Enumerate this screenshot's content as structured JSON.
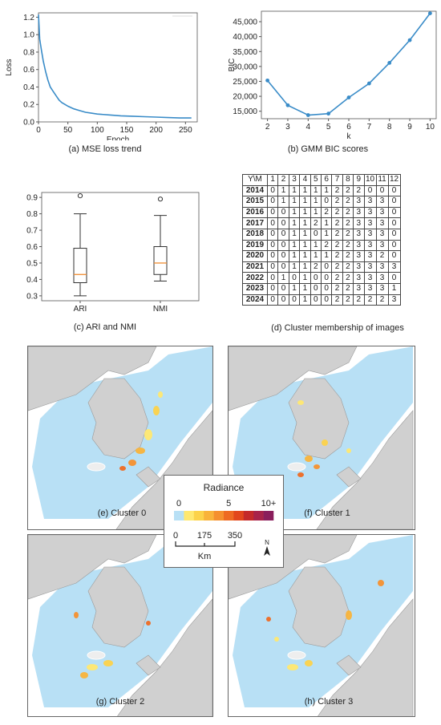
{
  "panel_a": {
    "caption": "(a) MSE loss trend",
    "chart_data": {
      "type": "line",
      "xlabel": "Epoch",
      "ylabel": "Loss",
      "xlim": [
        0,
        270
      ],
      "ylim": [
        0,
        1.25
      ],
      "xticks": [
        "0",
        "50",
        "100",
        "150",
        "200",
        "250"
      ],
      "yticks": [
        "0.0",
        "0.2",
        "0.4",
        "0.6",
        "0.8",
        "1.0",
        "1.2"
      ],
      "x": [
        0,
        2,
        5,
        8,
        12,
        16,
        20,
        25,
        30,
        35,
        40,
        45,
        50,
        60,
        70,
        80,
        90,
        100,
        120,
        140,
        160,
        180,
        200,
        220,
        240,
        260
      ],
      "y": [
        1.23,
        0.95,
        0.82,
        0.7,
        0.58,
        0.48,
        0.4,
        0.35,
        0.3,
        0.25,
        0.22,
        0.2,
        0.18,
        0.15,
        0.13,
        0.11,
        0.1,
        0.09,
        0.08,
        0.07,
        0.065,
        0.06,
        0.055,
        0.05,
        0.045,
        0.045
      ]
    }
  },
  "panel_b": {
    "caption": "(b) GMM BIC scores",
    "chart_data": {
      "type": "line",
      "xlabel": "k",
      "ylabel": "BIC",
      "xlim": [
        1.7,
        10.3
      ],
      "ylim": [
        12500,
        48500
      ],
      "xticks": [
        "2",
        "3",
        "4",
        "5",
        "6",
        "7",
        "8",
        "9",
        "10"
      ],
      "yticks": [
        "15,000",
        "20,000",
        "25,000",
        "30,000",
        "35,000",
        "40,000",
        "45,000"
      ],
      "x": [
        2,
        3,
        4,
        5,
        6,
        7,
        8,
        9,
        10
      ],
      "y": [
        25300,
        17000,
        13700,
        14200,
        19600,
        24300,
        31200,
        38800,
        47800
      ]
    }
  },
  "panel_c": {
    "caption": "(c) ARI and NMI",
    "chart_data": {
      "type": "box",
      "categories": [
        "ARI",
        "NMI"
      ],
      "ylim": [
        0.27,
        0.93
      ],
      "yticks": [
        "0.3",
        "0.4",
        "0.5",
        "0.6",
        "0.7",
        "0.8",
        "0.9"
      ],
      "boxes": [
        {
          "whisker_low": 0.3,
          "q1": 0.38,
          "median": 0.43,
          "q3": 0.59,
          "whisker_high": 0.8,
          "outliers": [
            0.91
          ]
        },
        {
          "whisker_low": 0.39,
          "q1": 0.43,
          "median": 0.5,
          "q3": 0.6,
          "whisker_high": 0.79,
          "outliers": [
            0.89
          ]
        }
      ]
    }
  },
  "panel_d": {
    "caption": "(d) Cluster membership of images",
    "chart_data": {
      "type": "table",
      "corner": "Y\\M",
      "columns": [
        "1",
        "2",
        "3",
        "4",
        "5",
        "6",
        "7",
        "8",
        "9",
        "10",
        "11",
        "12"
      ],
      "rows": [
        {
          "year": "2014",
          "cells": [
            "0",
            "1",
            "1",
            "1",
            "1",
            "1",
            "2",
            "2",
            "2",
            "0",
            "0",
            "0"
          ]
        },
        {
          "year": "2015",
          "cells": [
            "0",
            "1",
            "1",
            "1",
            "1",
            "0",
            "2",
            "2",
            "3",
            "3",
            "3",
            "0"
          ]
        },
        {
          "year": "2016",
          "cells": [
            "0",
            "0",
            "1",
            "1",
            "1",
            "2",
            "2",
            "2",
            "3",
            "3",
            "3",
            "0"
          ]
        },
        {
          "year": "2017",
          "cells": [
            "0",
            "0",
            "1",
            "1",
            "2",
            "1",
            "2",
            "2",
            "3",
            "3",
            "3",
            "0"
          ]
        },
        {
          "year": "2018",
          "cells": [
            "0",
            "0",
            "1",
            "1",
            "0",
            "1",
            "2",
            "2",
            "3",
            "3",
            "3",
            "0"
          ]
        },
        {
          "year": "2019",
          "cells": [
            "0",
            "0",
            "1",
            "1",
            "1",
            "2",
            "2",
            "2",
            "3",
            "3",
            "3",
            "0"
          ]
        },
        {
          "year": "2020",
          "cells": [
            "0",
            "0",
            "1",
            "1",
            "1",
            "1",
            "2",
            "2",
            "3",
            "3",
            "2",
            "0"
          ]
        },
        {
          "year": "2021",
          "cells": [
            "0",
            "0",
            "1",
            "1",
            "2",
            "0",
            "2",
            "2",
            "3",
            "3",
            "3",
            "3"
          ]
        },
        {
          "year": "2022",
          "cells": [
            "0",
            "1",
            "0",
            "1",
            "0",
            "0",
            "2",
            "2",
            "3",
            "3",
            "3",
            "0"
          ]
        },
        {
          "year": "2023",
          "cells": [
            "0",
            "0",
            "1",
            "1",
            "0",
            "0",
            "2",
            "2",
            "3",
            "3",
            "3",
            "1"
          ]
        },
        {
          "year": "2024",
          "cells": [
            "0",
            "0",
            "0",
            "1",
            "0",
            "0",
            "2",
            "2",
            "2",
            "2",
            "2",
            "3"
          ]
        }
      ]
    }
  },
  "maps": [
    {
      "caption": "(e) Cluster 0"
    },
    {
      "caption": "(f) Cluster 1"
    },
    {
      "caption": "(g) Cluster 2"
    },
    {
      "caption": "(h) Cluster 3"
    }
  ],
  "legend": {
    "title": "Radiance",
    "tick_labels": [
      "0",
      "5",
      "10+"
    ],
    "colors": [
      "#b8e0f5",
      "#ffe870",
      "#fcd24a",
      "#f9b33a",
      "#f5902e",
      "#ee6a22",
      "#e2471c",
      "#c42a2a",
      "#a8234a",
      "#8a1e5c"
    ],
    "scale_labels": [
      "0",
      "175",
      "350"
    ],
    "scale_unit": "Km",
    "north": "N"
  },
  "colors": {
    "line": "#3a8cc8",
    "box_median": "#f08c30",
    "sea": "#b8e0f5",
    "land": "#d0d0d0",
    "land_edge": "#9a9a9a"
  }
}
